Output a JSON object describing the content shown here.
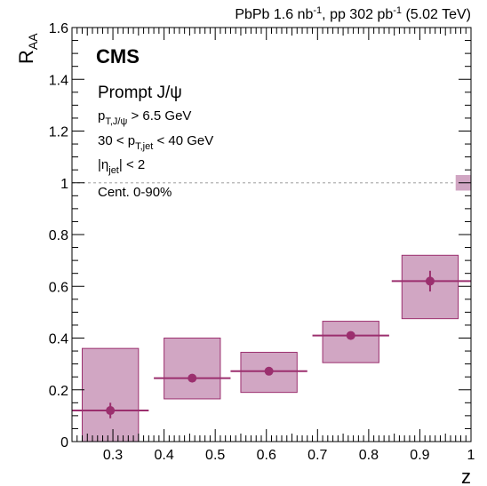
{
  "header": {
    "lumi_label": "PbPb 1.6 nb-1, pp 302 pb-1 (5.02 TeV)"
  },
  "legend": {
    "experiment": "CMS",
    "lines": [
      "Prompt J/ψ",
      "pT,J/ψ > 6.5 GeV",
      "30 < pT,jet < 40 GeV",
      "|ηjet| < 2",
      "Cent. 0-90%"
    ]
  },
  "chart_data": {
    "type": "scatter",
    "title": "",
    "xlabel": "z",
    "ylabel": "RAA",
    "xlim": [
      0.22,
      1.0
    ],
    "ylim": [
      0,
      1.6
    ],
    "x_ticks": [
      "0.3",
      "0.4",
      "0.5",
      "0.6",
      "0.7",
      "0.8",
      "0.9",
      "1"
    ],
    "y_ticks": [
      "0",
      "0.2",
      "0.4",
      "0.6",
      "0.8",
      "1",
      "1.2",
      "1.4",
      "1.6"
    ],
    "grid": false,
    "reference_line": 1.0,
    "global_uncertainty": {
      "x": [
        0.97,
        1.0
      ],
      "y": [
        0.97,
        1.03
      ]
    },
    "series": [
      {
        "points": [
          {
            "x": 0.295,
            "y": 0.12,
            "xerr": [
              0.075,
              0.075
            ],
            "yerr_stat": [
              0.03,
              0.03
            ],
            "syst_x": [
              0.24,
              0.35
            ],
            "syst_y": [
              0.0,
              0.36
            ]
          },
          {
            "x": 0.455,
            "y": 0.245,
            "xerr": [
              0.075,
              0.075
            ],
            "yerr_stat": [
              0.01,
              0.01
            ],
            "syst_x": [
              0.4,
              0.51
            ],
            "syst_y": [
              0.165,
              0.4
            ]
          },
          {
            "x": 0.605,
            "y": 0.272,
            "xerr": [
              0.075,
              0.075
            ],
            "yerr_stat": [
              0.01,
              0.01
            ],
            "syst_x": [
              0.55,
              0.66
            ],
            "syst_y": [
              0.19,
              0.345
            ]
          },
          {
            "x": 0.765,
            "y": 0.41,
            "xerr": [
              0.075,
              0.075
            ],
            "yerr_stat": [
              0.01,
              0.01
            ],
            "syst_x": [
              0.71,
              0.82
            ],
            "syst_y": [
              0.305,
              0.465
            ]
          },
          {
            "x": 0.92,
            "y": 0.62,
            "xerr": [
              0.075,
              0.08
            ],
            "yerr_stat": [
              0.04,
              0.04
            ],
            "syst_x": [
              0.865,
              0.975
            ],
            "syst_y": [
              0.475,
              0.72
            ]
          }
        ]
      }
    ]
  },
  "colors": {
    "marker": "#9b2f6e",
    "box_fill": "#d1a6c3",
    "box_stroke": "#9b2f6e",
    "ref_line": "#b0b0b0"
  }
}
